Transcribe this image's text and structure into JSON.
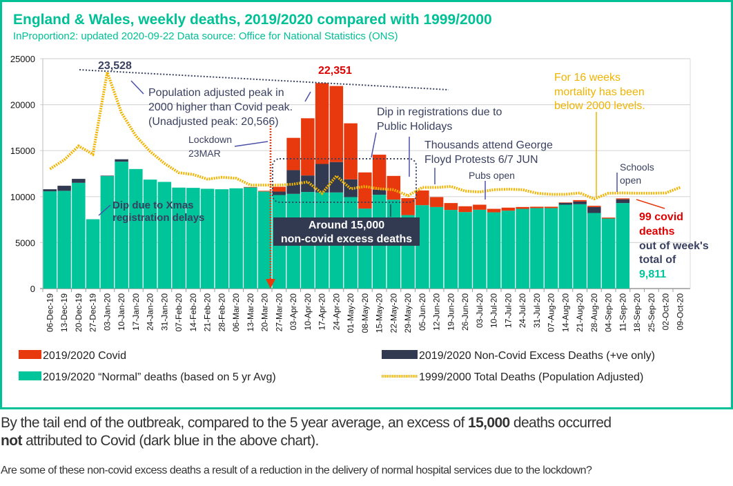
{
  "title": "England & Wales, weekly deaths, 2019/2020 compared with 1999/2000",
  "subtitle": "InProportion2: updated 2020-09-22 Data source: Office for National Statistics (ONS)",
  "colors": {
    "covid": "#e8380d",
    "excess": "#323a52",
    "normal": "#00c49a",
    "line1999": "#f0b400",
    "accent": "#00c096",
    "annot": "#3a4060",
    "arrow": "#4a4fa8"
  },
  "annotations": {
    "peak2000": "23,528",
    "peak2020": "22,351",
    "pop_adjusted": [
      "Population adjusted peak in",
      "2000 higher than Covid peak.",
      "(Unadjusted peak: 20,566)"
    ],
    "lockdown": [
      "Lockdown",
      "23MAR"
    ],
    "dip_registrations": [
      "Dip in registrations due to",
      "Public Holidays"
    ],
    "floyd": [
      "Thousands attend George",
      "Floyd Protests 6/7 JUN"
    ],
    "pubs": "Pubs open",
    "sixteen_weeks": [
      "For 16 weeks",
      "mortality has been",
      "below 2000 levels."
    ],
    "schools": [
      "Schools",
      "open"
    ],
    "xmas": [
      "Dip due to Xmas",
      "registration delays"
    ],
    "excess_box": [
      "Around 15,000",
      "non-covid excess deaths"
    ],
    "covid_latest": [
      "99 covid",
      "deaths"
    ],
    "out_of": [
      "out of week's",
      "total of"
    ],
    "total_latest": "9,811"
  },
  "chart_data": {
    "type": "bar",
    "stacked": true,
    "title": "England & Wales, weekly deaths, 2019/2020 compared with 1999/2000",
    "xlabel": "",
    "ylabel": "",
    "ylim": [
      0,
      25000
    ],
    "yticks": [
      0,
      5000,
      10000,
      15000,
      20000,
      25000
    ],
    "grid": true,
    "legend_position": "bottom",
    "categories": [
      "06-Dec-19",
      "13-Dec-19",
      "20-Dec-19",
      "27-Dec-19",
      "03-Jan-20",
      "10-Jan-20",
      "17-Jan-20",
      "24-Jan-20",
      "31-Jan-20",
      "07-Feb-20",
      "14-Feb-20",
      "21-Feb-20",
      "28-Feb-20",
      "06-Mar-20",
      "13-Mar-20",
      "20-Mar-20",
      "27-Mar-20",
      "03-Apr-20",
      "10-Apr-20",
      "17-Apr-20",
      "24-Apr-20",
      "01-May-20",
      "08-May-20",
      "15-May-20",
      "22-May-20",
      "29-May-20",
      "05-Jun-20",
      "12-Jun-20",
      "19-Jun-20",
      "26-Jun-20",
      "03-Jul-20",
      "10-Jul-20",
      "17-Jul-20",
      "24-Jul-20",
      "31-Jul-20",
      "07-Aug-20",
      "14-Aug-20",
      "21-Aug-20",
      "28-Aug-20",
      "04-Sep-20",
      "11-Sep-20",
      "18-Sep-20",
      "25-Sep-20",
      "02-Oct-20",
      "09-Oct-20"
    ],
    "series": [
      {
        "name": "2019/2020 “Normal” deaths (based on 5 yr Avg)",
        "key": "normal",
        "values": [
          10580,
          10630,
          11500,
          7540,
          12230,
          13800,
          13000,
          11850,
          11600,
          10980,
          10950,
          10850,
          10800,
          10900,
          11000,
          10560,
          10170,
          10300,
          10500,
          10450,
          10450,
          9950,
          8700,
          10200,
          9670,
          7990,
          9070,
          8870,
          8550,
          8320,
          8570,
          8290,
          8470,
          8670,
          8750,
          8750,
          9120,
          9170,
          8220,
          7620,
          9300,
          null,
          null,
          null,
          null
        ]
      },
      {
        "name": "2019/2020 Non-Covid Excess Deaths (+ve only)",
        "key": "excess",
        "values": [
          220,
          550,
          430,
          0,
          50,
          260,
          0,
          0,
          0,
          0,
          0,
          0,
          0,
          0,
          0,
          0,
          380,
          2580,
          1800,
          3100,
          3310,
          1930,
          0,
          550,
          0,
          0,
          0,
          0,
          0,
          0,
          0,
          0,
          0,
          0,
          0,
          0,
          200,
          300,
          650,
          0,
          410,
          null,
          null,
          null,
          null
        ]
      },
      {
        "name": "2019/2020 Covid",
        "key": "covid",
        "values": [
          0,
          0,
          0,
          0,
          0,
          0,
          0,
          0,
          0,
          0,
          0,
          0,
          0,
          0,
          50,
          70,
          520,
          3510,
          6220,
          8800,
          8270,
          6090,
          3930,
          3810,
          2580,
          1840,
          1600,
          1080,
          750,
          630,
          550,
          380,
          330,
          200,
          150,
          150,
          50,
          150,
          130,
          100,
          99,
          null,
          null,
          null,
          null
        ]
      },
      {
        "name": "1999/2000 Total Deaths (Population Adjusted)",
        "key": "line1999",
        "type": "line",
        "values": [
          13000,
          14000,
          15500,
          14600,
          23528,
          19100,
          16600,
          14900,
          13600,
          12600,
          12400,
          11900,
          12100,
          12000,
          11250,
          11250,
          11250,
          11350,
          11600,
          10350,
          12250,
          10850,
          11100,
          10850,
          10750,
          10100,
          11000,
          11000,
          11100,
          10600,
          10500,
          10750,
          10800,
          10750,
          10370,
          10250,
          10250,
          10400,
          9750,
          10370,
          10400,
          10370,
          10370,
          10400,
          11000
        ]
      }
    ],
    "legend": [
      "2019/2020 Covid",
      "2019/2020 Non-Covid Excess Deaths (+ve only)",
      "2019/2020 “Normal” deaths (based on 5 yr Avg)",
      "1999/2000 Total Deaths (Population Adjusted)"
    ]
  },
  "body": {
    "para_a": "By the tail end of the outbreak, compared to the 5 year average, an excess of ",
    "para_bold1": "15,000",
    "para_b": " deaths occurred ",
    "para_bold2": "not",
    "para_c": " attributed to Covid (dark blue in the above chart).",
    "question": "Are some of these non-covid excess deaths a result of a reduction in the delivery of normal hospital services due to the lockdown?"
  }
}
